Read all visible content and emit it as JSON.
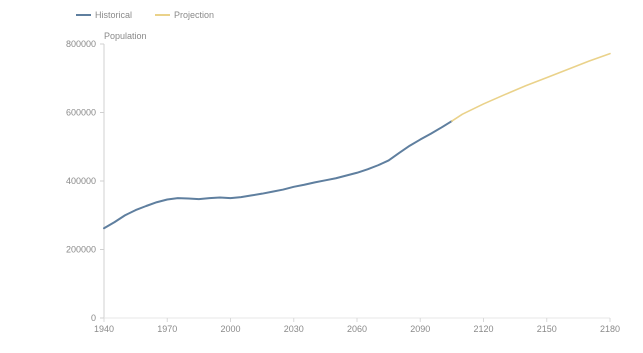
{
  "chart_data": {
    "type": "line",
    "title": "",
    "xlabel": "",
    "ylabel": "Population",
    "x_ticks": [
      "1940",
      "1970",
      "2000",
      "2030",
      "2060",
      "2090",
      "2120",
      "2150",
      "2180"
    ],
    "y_ticks": [
      "0",
      "200000",
      "400000",
      "600000",
      "800000"
    ],
    "xlim": [
      1940,
      2180
    ],
    "ylim": [
      0,
      800000
    ],
    "grid": false,
    "legend": "top-left",
    "series": [
      {
        "name": "Historical",
        "color": "#5f7f9f",
        "x": [
          1940,
          1945,
          1950,
          1955,
          1960,
          1965,
          1970,
          1975,
          1980,
          1985,
          1990,
          1995,
          2000,
          2005,
          2010,
          2015,
          2020,
          2025,
          2030,
          2035,
          2040,
          2045,
          2050,
          2055,
          2060,
          2065,
          2070,
          2075,
          2080,
          2085,
          2090,
          2095,
          2100,
          2105
        ],
        "values": [
          262000,
          280000,
          300000,
          315000,
          327000,
          338000,
          346000,
          350000,
          349000,
          347000,
          350000,
          352000,
          350000,
          353000,
          358000,
          363000,
          369000,
          375000,
          383000,
          389000,
          396000,
          402000,
          408000,
          416000,
          424000,
          434000,
          446000,
          460000,
          482000,
          503000,
          521000,
          538000,
          556000,
          575000
        ]
      },
      {
        "name": "Projection",
        "color": "#ead28a",
        "x": [
          2105,
          2110,
          2120,
          2130,
          2140,
          2150,
          2160,
          2170,
          2180
        ],
        "values": [
          575000,
          595000,
          625000,
          652000,
          678000,
          702000,
          726000,
          750000,
          772000
        ]
      }
    ]
  }
}
